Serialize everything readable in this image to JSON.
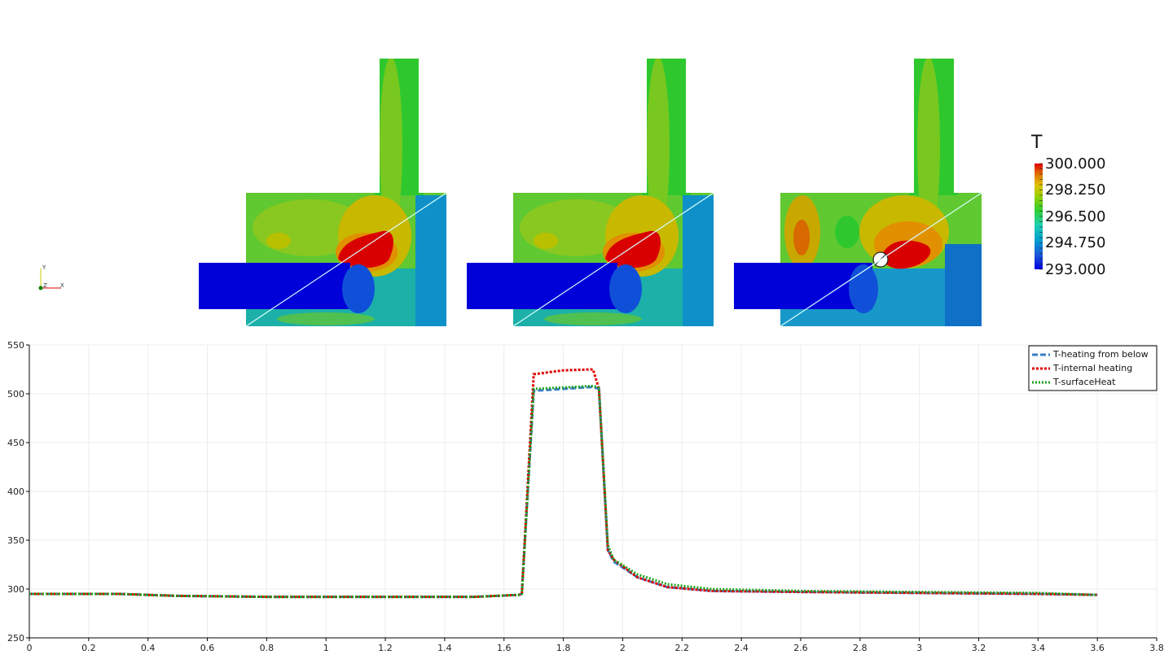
{
  "colorbar": {
    "title": "T",
    "labels": [
      "300.000",
      "298.250",
      "296.500",
      "294.750",
      "293.000"
    ],
    "range": [
      293.0,
      300.0
    ]
  },
  "orientation_axes": {
    "x": "X",
    "y": "Y",
    "z": "Z"
  },
  "colors": {
    "heating_from_below": "#3a7dc4",
    "internal_heating": "#e00000",
    "surface_heat": "#1aa21a"
  },
  "chart_data": {
    "type": "line",
    "xlim": [
      0,
      3.8
    ],
    "ylim": [
      250,
      550
    ],
    "x_ticks": [
      "0",
      "0.2",
      "0.4",
      "0.6",
      "0.8",
      "1",
      "1.2",
      "1.4",
      "1.6",
      "1.8",
      "2",
      "2.2",
      "2.4",
      "2.6",
      "2.8",
      "3",
      "3.2",
      "3.4",
      "3.6",
      "3.8"
    ],
    "y_ticks": [
      "250",
      "300",
      "350",
      "400",
      "450",
      "500",
      "550"
    ],
    "grid": true,
    "legend_position": "top-right",
    "series": [
      {
        "name": "T-heating from below",
        "x": [
          0,
          0.3,
          0.5,
          0.8,
          1.2,
          1.5,
          1.65,
          1.66,
          1.7,
          1.9,
          1.92,
          1.95,
          1.97,
          2.05,
          2.15,
          2.3,
          2.6,
          3.0,
          3.4,
          3.6
        ],
        "y": [
          295,
          295,
          293,
          292,
          292,
          292,
          294,
          295,
          503,
          507,
          505,
          340,
          328,
          312,
          302,
          298,
          297,
          296,
          295,
          294
        ]
      },
      {
        "name": "T-internal heating",
        "x": [
          0,
          0.3,
          0.5,
          0.8,
          1.2,
          1.5,
          1.65,
          1.66,
          1.7,
          1.8,
          1.9,
          1.92,
          1.95,
          1.97,
          2.05,
          2.15,
          2.3,
          2.6,
          3.0,
          3.4,
          3.6
        ],
        "y": [
          295,
          295,
          293,
          292,
          292,
          292,
          294,
          295,
          520,
          524,
          525,
          505,
          340,
          330,
          312,
          302,
          298,
          297,
          296,
          295,
          294
        ]
      },
      {
        "name": "T-surfaceHeat",
        "x": [
          0,
          0.3,
          0.5,
          0.8,
          1.2,
          1.5,
          1.65,
          1.66,
          1.7,
          1.9,
          1.92,
          1.95,
          1.97,
          2.05,
          2.15,
          2.3,
          2.6,
          3.0,
          3.4,
          3.6
        ],
        "y": [
          295,
          295,
          293,
          292,
          292,
          292,
          294,
          295,
          505,
          508,
          506,
          345,
          330,
          315,
          305,
          300,
          298,
          297,
          296,
          294
        ]
      }
    ]
  }
}
